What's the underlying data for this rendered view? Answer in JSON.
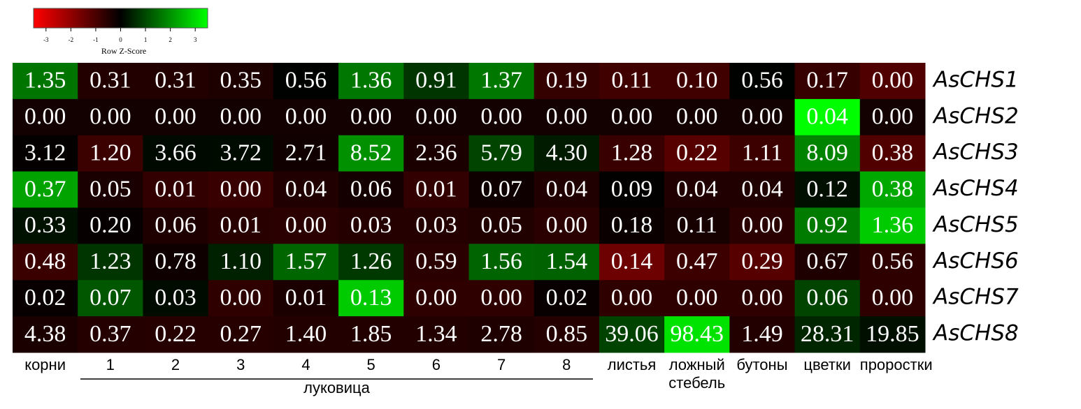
{
  "chart_data": {
    "type": "heatmap",
    "legend_title": "Row Z-Score",
    "legend_xlim": [
      -3.5,
      3.5
    ],
    "legend_xticks": [
      -3,
      -2,
      -1,
      0,
      1,
      2,
      3
    ],
    "color_scale": [
      "#ff0000",
      "#000000",
      "#00ff00"
    ],
    "rows": [
      "AsCHS1",
      "AsCHS2",
      "AsCHS3",
      "AsCHS4",
      "AsCHS5",
      "AsCHS6",
      "AsCHS7",
      "AsCHS8"
    ],
    "categories": [
      "корни",
      "1",
      "2",
      "3",
      "4",
      "5",
      "6",
      "7",
      "8",
      "листья",
      "ложный стебель",
      "бутоны",
      "цветки",
      "проростки"
    ],
    "group_label": "луковица",
    "values": [
      [
        1.35,
        0.31,
        0.31,
        0.35,
        0.56,
        1.36,
        0.91,
        1.37,
        0.19,
        0.11,
        0.1,
        0.56,
        0.17,
        0.0
      ],
      [
        0.0,
        0.0,
        0.0,
        0.0,
        0.0,
        0.0,
        0.0,
        0.0,
        0.0,
        0.0,
        0.0,
        0.0,
        0.04,
        0.0
      ],
      [
        3.12,
        1.2,
        3.66,
        3.72,
        2.71,
        8.52,
        2.36,
        5.79,
        4.3,
        1.28,
        0.22,
        1.11,
        8.09,
        0.38
      ],
      [
        0.37,
        0.05,
        0.01,
        0.0,
        0.04,
        0.06,
        0.01,
        0.07,
        0.04,
        0.09,
        0.04,
        0.04,
        0.12,
        0.38
      ],
      [
        0.33,
        0.2,
        0.06,
        0.01,
        0.0,
        0.03,
        0.03,
        0.05,
        0.0,
        0.18,
        0.11,
        0.0,
        0.92,
        1.36
      ],
      [
        0.48,
        1.23,
        0.78,
        1.1,
        1.57,
        1.26,
        0.59,
        1.56,
        1.54,
        0.14,
        0.47,
        0.29,
        0.67,
        0.56
      ],
      [
        0.02,
        0.07,
        0.03,
        0.0,
        0.01,
        0.13,
        0.0,
        0.0,
        0.02,
        0.0,
        0.0,
        0.0,
        0.06,
        0.0
      ],
      [
        4.38,
        0.37,
        0.22,
        0.27,
        1.4,
        1.85,
        1.34,
        2.78,
        0.85,
        39.06,
        98.43,
        1.49,
        28.31,
        19.85
      ]
    ],
    "value_labels": [
      [
        "1.35",
        "0.31",
        "0.31",
        "0.35",
        "0.56",
        "1.36",
        "0.91",
        "1.37",
        "0.19",
        "0.11",
        "0.10",
        "0.56",
        "0.17",
        "0.00"
      ],
      [
        "0.00",
        "0.00",
        "0.00",
        "0.00",
        "0.00",
        "0.00",
        "0.00",
        "0.00",
        "0.00",
        "0.00",
        "0.00",
        "0.00",
        "0.04",
        "0.00"
      ],
      [
        "3.12",
        "1.20",
        "3.66",
        "3.72",
        "2.71",
        "8.52",
        "2.36",
        "5.79",
        "4.30",
        "1.28",
        "0.22",
        "1.11",
        "8.09",
        "0.38"
      ],
      [
        "0.37",
        "0.05",
        "0.01",
        "0.00",
        "0.04",
        "0.06",
        "0.01",
        "0.07",
        "0.04",
        "0.09",
        "0.04",
        "0.04",
        "0.12",
        "0.38"
      ],
      [
        "0.33",
        "0.20",
        "0.06",
        "0.01",
        "0.00",
        "0.03",
        "0.03",
        "0.05",
        "0.00",
        "0.18",
        "0.11",
        "0.00",
        "0.92",
        "1.36"
      ],
      [
        "0.48",
        "1.23",
        "0.78",
        "1.10",
        "1.57",
        "1.26",
        "0.59",
        "1.56",
        "1.54",
        "0.14",
        "0.47",
        "0.29",
        "0.67",
        "0.56"
      ],
      [
        "0.02",
        "0.07",
        "0.03",
        "0.00",
        "0.01",
        "0.13",
        "0.00",
        "0.00",
        "0.02",
        "0.00",
        "0.00",
        "0.00",
        "0.06",
        "0.00"
      ],
      [
        "4.38",
        "0.37",
        "0.22",
        "0.27",
        "1.40",
        "1.85",
        "1.34",
        "2.78",
        "0.85",
        "39.06",
        "98.43",
        "1.49",
        "28.31",
        "19.85"
      ]
    ]
  }
}
